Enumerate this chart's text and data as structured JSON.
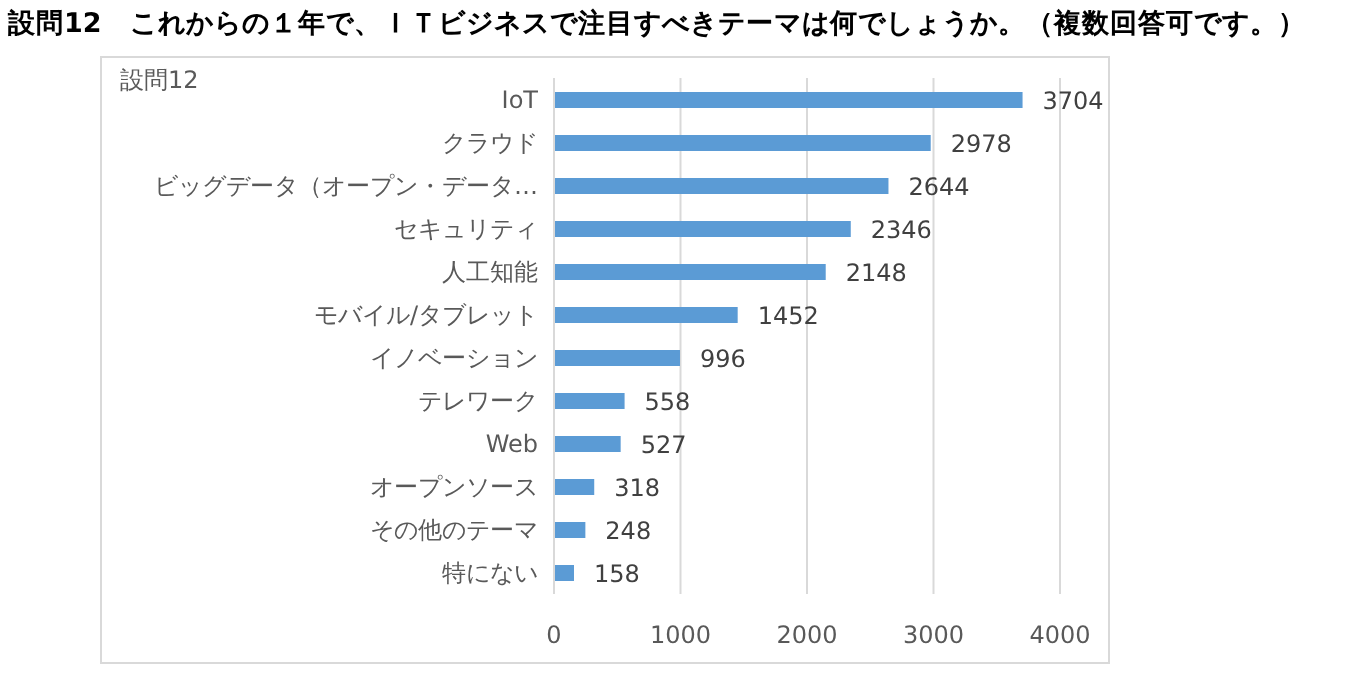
{
  "chart_data": {
    "type": "bar",
    "orientation": "horizontal",
    "title": "設問12　これからの１年で、ＩＴビジネスで注目すべきテーマは何でしょうか。（複数回答可です。）",
    "subtitle": "設問12",
    "categories": [
      "IoT",
      "クラウド",
      "ビッグデータ（オープン・データ…",
      "セキュリティ",
      "人工知能",
      "モバイル/タブレット",
      "イノベーション",
      "テレワーク",
      "Web",
      "オープンソース",
      "その他のテーマ",
      "特にない"
    ],
    "values": [
      3704,
      2978,
      2644,
      2346,
      2148,
      1452,
      996,
      558,
      527,
      318,
      248,
      158
    ],
    "color": "#5b9bd5",
    "xlim": [
      0,
      4000
    ],
    "xticks": [
      0,
      1000,
      2000,
      3000,
      4000
    ],
    "grid": "x",
    "data_labels": true
  }
}
